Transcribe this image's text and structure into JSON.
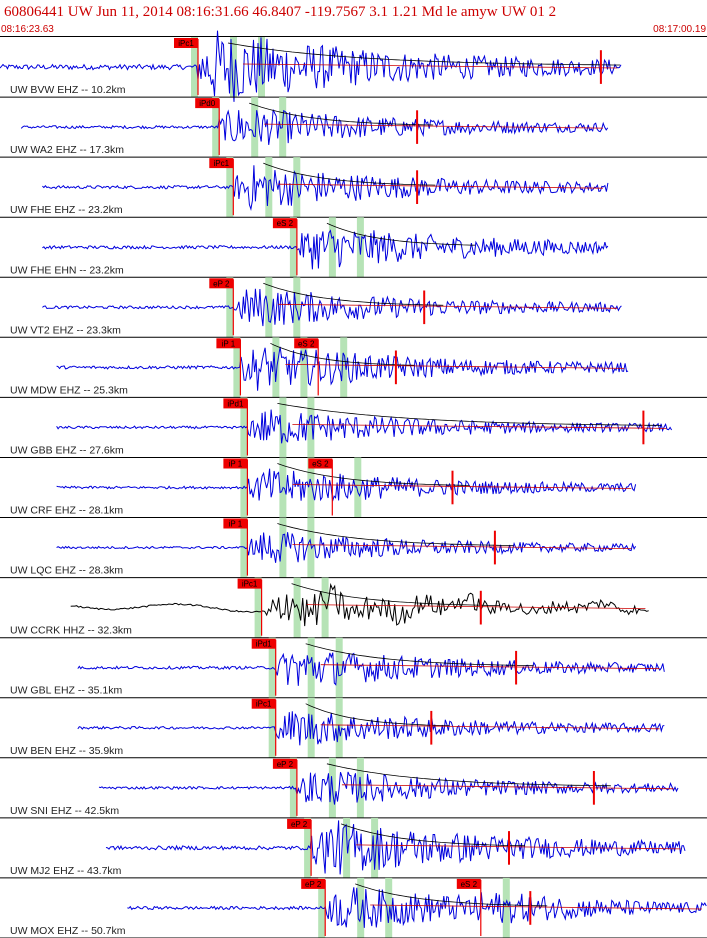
{
  "header": {
    "title": "60806441 UW Jun 11, 2014 08:16:31.66   46.8407 -119.7567  3.1 1.21 Md le amyw UW 01   2",
    "start_time": "08:16:23.63",
    "end_time": "08:17:00.19"
  },
  "colors": {
    "header_text": "#cc0000",
    "trace_z": "#0000dd",
    "trace_broadband": "#000000",
    "pick_box": "#ee0000",
    "pick_line": "#ee0000",
    "window_band": "#b6e3b6",
    "coda_fit": "#cc0000",
    "moveout_curve": "#000000",
    "separator": "#000000"
  },
  "chart_data": {
    "type": "line",
    "title": "60806441 UW Jun 11, 2014 08:16:31.66   46.8407 -119.7567  3.1 1.21 Md le amyw UW 01   2",
    "x_range": [
      "08:16:23.63",
      "08:17:00.19"
    ],
    "grid": false,
    "traces": [
      {
        "label": "UW BVW EHZ -- 10.2km",
        "color": "#0000dd",
        "amp": 1.0,
        "start_frac": 0.0,
        "end_frac": 0.88,
        "picks": [
          {
            "label": "iPc1",
            "frac": 0.28
          }
        ],
        "coda_frac": 0.85
      },
      {
        "label": "UW WA2 EHZ -- 17.3km",
        "color": "#0000dd",
        "amp": 0.55,
        "start_frac": 0.03,
        "end_frac": 0.86,
        "picks": [
          {
            "label": "iPd0",
            "frac": 0.31
          }
        ],
        "coda_frac": 0.59
      },
      {
        "label": "UW FHE EHZ -- 23.2km",
        "color": "#0000dd",
        "amp": 0.6,
        "start_frac": 0.06,
        "end_frac": 0.86,
        "picks": [
          {
            "label": "iPc1",
            "frac": 0.33
          }
        ],
        "coda_frac": 0.59
      },
      {
        "label": "UW FHE EHN -- 23.2km",
        "color": "#0000dd",
        "amp": 0.6,
        "start_frac": 0.06,
        "end_frac": 0.86,
        "picks": [
          {
            "label": "eS 2",
            "frac": 0.42
          }
        ],
        "coda_frac": null
      },
      {
        "label": "UW VT2 EHZ -- 23.3km",
        "color": "#0000dd",
        "amp": 0.55,
        "start_frac": 0.06,
        "end_frac": 0.88,
        "picks": [
          {
            "label": "eP 2",
            "frac": 0.33
          }
        ],
        "coda_frac": 0.6
      },
      {
        "label": "UW MDW EHZ -- 25.3km",
        "color": "#0000dd",
        "amp": 0.6,
        "start_frac": 0.08,
        "end_frac": 0.89,
        "picks": [
          {
            "label": "iP 1",
            "frac": 0.34
          },
          {
            "label": "eS 2",
            "frac": 0.45
          }
        ],
        "coda_frac": 0.56
      },
      {
        "label": "UW GBB EHZ -- 27.6km",
        "color": "#0000dd",
        "amp": 0.5,
        "start_frac": 0.08,
        "end_frac": 0.95,
        "picks": [
          {
            "label": "iPd1",
            "frac": 0.35
          }
        ],
        "coda_frac": 0.91
      },
      {
        "label": "UW CRF EHZ -- 28.1km",
        "color": "#0000dd",
        "amp": 0.5,
        "start_frac": 0.08,
        "end_frac": 0.9,
        "picks": [
          {
            "label": "iP 1",
            "frac": 0.35
          },
          {
            "label": "eS 2",
            "frac": 0.47
          }
        ],
        "coda_frac": 0.64
      },
      {
        "label": "UW LQC EHZ -- 28.3km",
        "color": "#0000dd",
        "amp": 0.45,
        "start_frac": 0.08,
        "end_frac": 0.9,
        "picks": [
          {
            "label": "iP 1",
            "frac": 0.35
          }
        ],
        "coda_frac": 0.7
      },
      {
        "label": "UW CCRK HHZ -- 32.3km",
        "color": "#000000",
        "amp": 0.6,
        "start_frac": 0.1,
        "end_frac": 0.92,
        "picks": [
          {
            "label": "iPc1",
            "frac": 0.37
          }
        ],
        "coda_frac": 0.68
      },
      {
        "label": "UW GBL EHZ -- 35.1km",
        "color": "#0000dd",
        "amp": 0.55,
        "start_frac": 0.11,
        "end_frac": 0.94,
        "picks": [
          {
            "label": "iPd1",
            "frac": 0.39
          }
        ],
        "coda_frac": 0.73
      },
      {
        "label": "UW BEN EHZ -- 35.9km",
        "color": "#0000dd",
        "amp": 0.5,
        "start_frac": 0.11,
        "end_frac": 0.94,
        "picks": [
          {
            "label": "iPc1",
            "frac": 0.39
          }
        ],
        "coda_frac": 0.61
      },
      {
        "label": "UW SNI EHZ -- 42.5km",
        "color": "#0000dd",
        "amp": 0.5,
        "start_frac": 0.14,
        "end_frac": 0.96,
        "picks": [
          {
            "label": "eP 2",
            "frac": 0.42
          }
        ],
        "coda_frac": 0.84
      },
      {
        "label": "UW MJ2 EHZ -- 43.7km",
        "color": "#0000dd",
        "amp": 0.75,
        "start_frac": 0.15,
        "end_frac": 0.97,
        "picks": [
          {
            "label": "eP 2",
            "frac": 0.44
          }
        ],
        "coda_frac": 0.72
      },
      {
        "label": "UW MOX EHZ -- 50.7km",
        "color": "#0000dd",
        "amp": 0.6,
        "start_frac": 0.18,
        "end_frac": 1.0,
        "picks": [
          {
            "label": "eP 2",
            "frac": 0.46
          },
          {
            "label": "eS 2",
            "frac": 0.68
          }
        ],
        "coda_frac": 0.75
      }
    ]
  }
}
